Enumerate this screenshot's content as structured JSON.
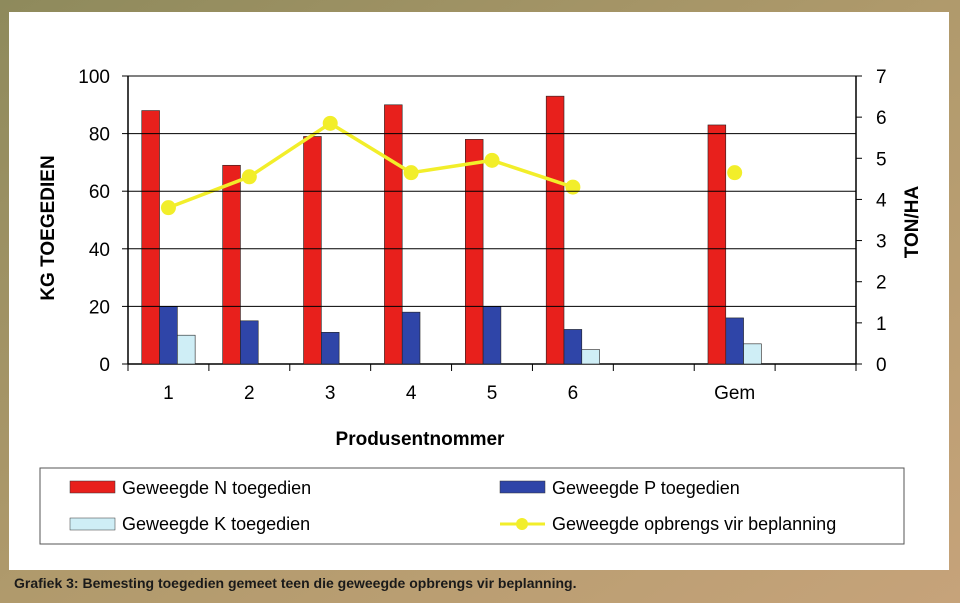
{
  "caption": "Grafiek 3: Bemesting toegedien gemeet teen die geweegde opbrengs vir beplanning.",
  "colors": {
    "N": "#e8201c",
    "P": "#2f45a8",
    "K": "#cfeef6",
    "yield": "#f2ee2a"
  },
  "chart_data": {
    "type": "bar",
    "categories": [
      "1",
      "2",
      "3",
      "4",
      "5",
      "6",
      "",
      "Gem",
      ""
    ],
    "xlabel": "Produsentnommer",
    "ylabel": "KG TOEGEDIEN",
    "y2label": "TON/HA",
    "ylim": [
      0,
      100
    ],
    "y2lim": [
      0,
      7
    ],
    "yticks": [
      "0",
      "20",
      "40",
      "60",
      "80",
      "100"
    ],
    "y2ticks": [
      "0",
      "1",
      "2",
      "3",
      "4",
      "5",
      "6",
      "7"
    ],
    "series": [
      {
        "name": "Geweegde N toegedien",
        "type": "bar",
        "axis": "left",
        "values": [
          88,
          69,
          79,
          90,
          78,
          93,
          null,
          83,
          null
        ]
      },
      {
        "name": "Geweegde P toegedien",
        "type": "bar",
        "axis": "left",
        "values": [
          20,
          15,
          11,
          18,
          20,
          12,
          null,
          16,
          null
        ]
      },
      {
        "name": "Geweegde K toegedien",
        "type": "bar",
        "axis": "left",
        "values": [
          10,
          null,
          null,
          null,
          null,
          5,
          null,
          7,
          null
        ]
      },
      {
        "name": "Geweegde opbrengs vir beplanning",
        "type": "line",
        "axis": "right",
        "values": [
          3.8,
          4.55,
          5.85,
          4.65,
          4.95,
          4.3,
          null,
          4.65,
          null
        ]
      }
    ],
    "legend_position": "bottom"
  }
}
